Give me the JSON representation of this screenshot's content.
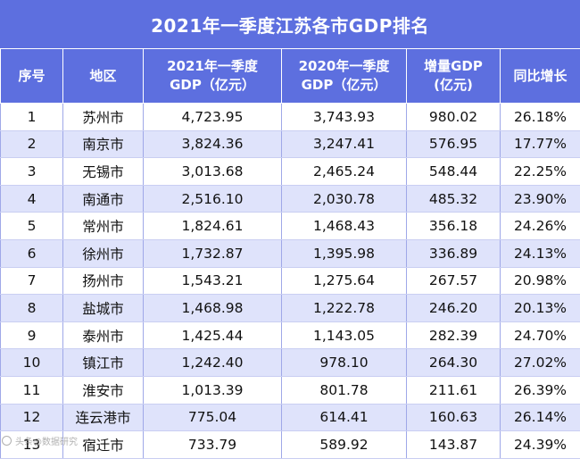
{
  "title": "2021年一季度江苏各市GDP排名",
  "columns": [
    "序号",
    "地区",
    "2021年一季度\nGDP（亿元）",
    "2020年一季度\nGDP（亿元）",
    "增量GDP\n(亿元)",
    "同比增长"
  ],
  "rows": [
    [
      "1",
      "苏州市",
      "4,723.95",
      "3,743.93",
      "980.02",
      "26.18%"
    ],
    [
      "2",
      "南京市",
      "3,824.36",
      "3,247.41",
      "576.95",
      "17.77%"
    ],
    [
      "3",
      "无锡市",
      "3,013.68",
      "2,465.24",
      "548.44",
      "22.25%"
    ],
    [
      "4",
      "南通市",
      "2,516.10",
      "2,030.78",
      "485.32",
      "23.90%"
    ],
    [
      "5",
      "常州市",
      "1,824.61",
      "1,468.43",
      "356.18",
      "24.26%"
    ],
    [
      "6",
      "徐州市",
      "1,732.87",
      "1,395.98",
      "336.89",
      "24.13%"
    ],
    [
      "7",
      "扬州市",
      "1,543.21",
      "1,275.64",
      "267.57",
      "20.98%"
    ],
    [
      "8",
      "盐城市",
      "1,468.98",
      "1,222.78",
      "246.20",
      "20.13%"
    ],
    [
      "9",
      "泰州市",
      "1,425.44",
      "1,143.05",
      "282.39",
      "24.70%"
    ],
    [
      "10",
      "镇江市",
      "1,242.40",
      "978.10",
      "264.30",
      "27.02%"
    ],
    [
      "11",
      "淮安市",
      "1,013.39",
      "801.78",
      "211.61",
      "26.39%"
    ],
    [
      "12",
      "连云港市",
      "775.04",
      "614.41",
      "160.63",
      "26.14%"
    ],
    [
      "13",
      "宿迁市",
      "733.79",
      "589.92",
      "143.87",
      "24.39%"
    ]
  ],
  "watermark": "头条@数据研究",
  "colors": {
    "header_bg": "#5d6fdf",
    "row_alt_bg": "#dfe3fb",
    "text": "#111111"
  }
}
